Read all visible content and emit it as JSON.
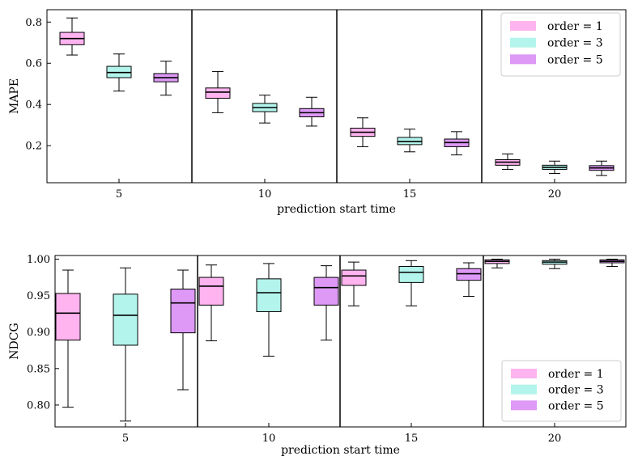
{
  "colors": {
    "order1": "#ffb3ef",
    "order3": "#b3f5ec",
    "order5": "#dd99f5"
  },
  "chart_data": [
    {
      "type": "box",
      "ylabel": "MAPE",
      "xlabel": "prediction start time",
      "categories": [
        "5",
        "10",
        "15",
        "20"
      ],
      "ylim": [
        0.02,
        0.86
      ],
      "yticks": [
        0.2,
        0.4,
        0.6,
        0.8
      ],
      "ytick_labels": [
        "0.2",
        "0.4",
        "0.6",
        "0.8"
      ],
      "legend": {
        "position": "top-right",
        "entries": [
          "order = 1",
          "order = 3",
          "order = 5"
        ]
      },
      "series": [
        {
          "name": "order = 1",
          "color_key": "order1",
          "boxes": [
            {
              "min": 0.64,
              "q1": 0.69,
              "median": 0.72,
              "q3": 0.75,
              "max": 0.82
            },
            {
              "min": 0.36,
              "q1": 0.43,
              "median": 0.46,
              "q3": 0.48,
              "max": 0.56
            },
            {
              "min": 0.195,
              "q1": 0.245,
              "median": 0.265,
              "q3": 0.285,
              "max": 0.335
            },
            {
              "min": 0.085,
              "q1": 0.105,
              "median": 0.12,
              "q3": 0.132,
              "max": 0.16
            }
          ]
        },
        {
          "name": "order = 3",
          "color_key": "order3",
          "boxes": [
            {
              "min": 0.465,
              "q1": 0.53,
              "median": 0.555,
              "q3": 0.585,
              "max": 0.645
            },
            {
              "min": 0.31,
              "q1": 0.365,
              "median": 0.385,
              "q3": 0.405,
              "max": 0.445
            },
            {
              "min": 0.17,
              "q1": 0.205,
              "median": 0.22,
              "q3": 0.24,
              "max": 0.28
            },
            {
              "min": 0.065,
              "q1": 0.085,
              "median": 0.095,
              "q3": 0.105,
              "max": 0.125
            }
          ]
        },
        {
          "name": "order = 5",
          "color_key": "order5",
          "boxes": [
            {
              "min": 0.445,
              "q1": 0.51,
              "median": 0.53,
              "q3": 0.55,
              "max": 0.61
            },
            {
              "min": 0.295,
              "q1": 0.34,
              "median": 0.36,
              "q3": 0.38,
              "max": 0.435
            },
            {
              "min": 0.155,
              "q1": 0.195,
              "median": 0.215,
              "q3": 0.232,
              "max": 0.268
            },
            {
              "min": 0.055,
              "q1": 0.08,
              "median": 0.092,
              "q3": 0.103,
              "max": 0.125
            }
          ]
        }
      ]
    },
    {
      "type": "box",
      "ylabel": "NDCG",
      "xlabel": "prediction start time",
      "categories": [
        "5",
        "10",
        "15",
        "20"
      ],
      "ylim": [
        0.77,
        1.005
      ],
      "yticks": [
        0.8,
        0.85,
        0.9,
        0.95,
        1.0
      ],
      "ytick_labels": [
        "0.80",
        "0.85",
        "0.90",
        "0.95",
        "1.00"
      ],
      "legend": {
        "position": "bottom-right",
        "entries": [
          "order = 1",
          "order = 3",
          "order = 5"
        ]
      },
      "series": [
        {
          "name": "order = 1",
          "color_key": "order1",
          "boxes": [
            {
              "min": 0.797,
              "q1": 0.889,
              "median": 0.926,
              "q3": 0.953,
              "max": 0.985
            },
            {
              "min": 0.888,
              "q1": 0.937,
              "median": 0.963,
              "q3": 0.975,
              "max": 0.992
            },
            {
              "min": 0.936,
              "q1": 0.964,
              "median": 0.977,
              "q3": 0.985,
              "max": 0.996
            },
            {
              "min": 0.988,
              "q1": 0.994,
              "median": 0.997,
              "q3": 0.999,
              "max": 1.0
            }
          ]
        },
        {
          "name": "order = 3",
          "color_key": "order3",
          "boxes": [
            {
              "min": 0.778,
              "q1": 0.882,
              "median": 0.923,
              "q3": 0.952,
              "max": 0.988
            },
            {
              "min": 0.867,
              "q1": 0.928,
              "median": 0.954,
              "q3": 0.973,
              "max": 0.994
            },
            {
              "min": 0.936,
              "q1": 0.968,
              "median": 0.982,
              "q3": 0.99,
              "max": 0.998
            },
            {
              "min": 0.987,
              "q1": 0.993,
              "median": 0.996,
              "q3": 0.998,
              "max": 1.0
            }
          ]
        },
        {
          "name": "order = 5",
          "color_key": "order5",
          "boxes": [
            {
              "min": 0.821,
              "q1": 0.899,
              "median": 0.94,
              "q3": 0.959,
              "max": 0.985
            },
            {
              "min": 0.889,
              "q1": 0.937,
              "median": 0.961,
              "q3": 0.975,
              "max": 0.991
            },
            {
              "min": 0.949,
              "q1": 0.971,
              "median": 0.98,
              "q3": 0.987,
              "max": 0.995
            },
            {
              "min": 0.99,
              "q1": 0.995,
              "median": 0.997,
              "q3": 0.999,
              "max": 1.0
            }
          ]
        }
      ]
    }
  ]
}
